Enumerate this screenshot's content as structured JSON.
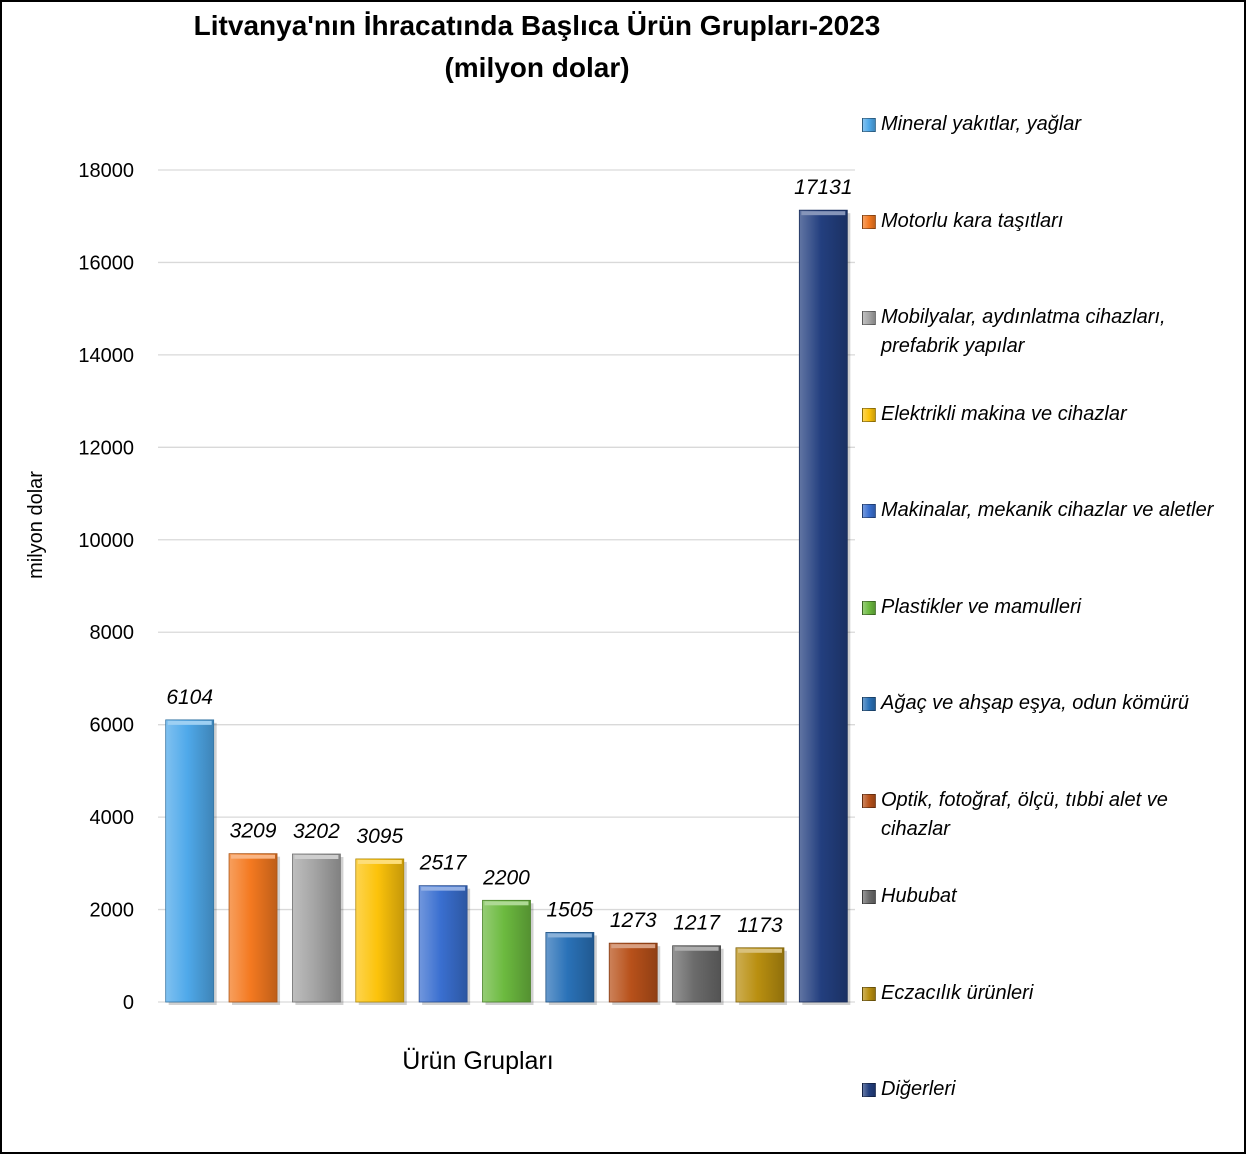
{
  "chart_data": {
    "type": "bar",
    "title": "Litvanya'nın İhracatında Başlıca Ürün Grupları-2023",
    "subtitle": "(milyon dolar)",
    "xlabel": "Ürün Grupları",
    "ylabel": "milyon dolar",
    "ylim": [
      0,
      18000
    ],
    "yticks": [
      "0",
      "2000",
      "4000",
      "6000",
      "8000",
      "10000",
      "12000",
      "14000",
      "16000",
      "18000"
    ],
    "grid": true,
    "legend_position": "right",
    "series": [
      {
        "name": "Mineral yakıtlar, yağlar",
        "value": 6104,
        "label": "6104",
        "color": "#4fa9ea"
      },
      {
        "name": "Motorlu kara taşıtları",
        "value": 3209,
        "label": "3209",
        "color": "#f47920"
      },
      {
        "name": "Mobilyalar, aydınlatma cihazları, prefabrik yapılar",
        "value": 3202,
        "label": "3202",
        "color": "#a5a5a5"
      },
      {
        "name": "Elektrikli makina ve cihazlar",
        "value": 3095,
        "label": "3095",
        "color": "#fcc30b"
      },
      {
        "name": "Makinalar, mekanik cihazlar ve aletler",
        "value": 2517,
        "label": "2517",
        "color": "#3a6fd0"
      },
      {
        "name": "Plastikler ve mamulleri",
        "value": 2200,
        "label": "2200",
        "color": "#6cba3f"
      },
      {
        "name": "Ağaç ve ahşap eşya, odun kömürü",
        "value": 1505,
        "label": "1505",
        "color": "#2a72b8"
      },
      {
        "name": "Optik, fotoğraf, ölçü, tıbbi alet ve cihazlar",
        "value": 1273,
        "label": "1273",
        "color": "#b8511a"
      },
      {
        "name": "Hububat",
        "value": 1217,
        "label": "1217",
        "color": "#6b6b6b"
      },
      {
        "name": "Eczacılık ürünleri",
        "value": 1173,
        "label": "1173",
        "color": "#b98f10"
      },
      {
        "name": "Diğerleri",
        "value": 17131,
        "label": "17131",
        "color": "#233f7f"
      }
    ]
  }
}
